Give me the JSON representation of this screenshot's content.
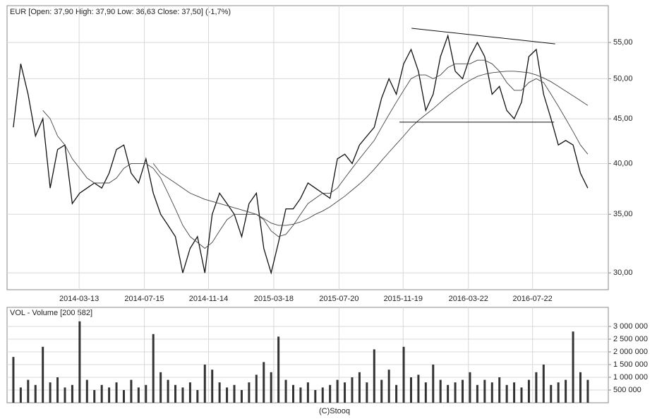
{
  "chart_data": [
    {
      "type": "line",
      "title": "EUR [Open: 37,90 High: 37,90 Low: 36,63 Close: 37,50] (-1,7%)",
      "x": [
        "2013-11-08",
        "2013-11-22",
        "2013-12-06",
        "2013-12-20",
        "2014-01-03",
        "2014-01-17",
        "2014-01-31",
        "2014-02-14",
        "2014-02-28",
        "2014-03-14",
        "2014-03-28",
        "2014-04-11",
        "2014-04-25",
        "2014-05-09",
        "2014-05-23",
        "2014-06-06",
        "2014-06-20",
        "2014-07-04",
        "2014-07-18",
        "2014-08-01",
        "2014-08-15",
        "2014-08-29",
        "2014-09-12",
        "2014-09-26",
        "2014-10-10",
        "2014-10-24",
        "2014-11-07",
        "2014-11-21",
        "2014-12-05",
        "2014-12-19",
        "2015-01-02",
        "2015-01-16",
        "2015-01-30",
        "2015-02-13",
        "2015-02-27",
        "2015-03-13",
        "2015-03-27",
        "2015-04-10",
        "2015-04-24",
        "2015-05-08",
        "2015-05-22",
        "2015-06-05",
        "2015-06-19",
        "2015-07-03",
        "2015-07-17",
        "2015-07-31",
        "2015-08-14",
        "2015-08-28",
        "2015-09-11",
        "2015-09-25",
        "2015-10-09",
        "2015-10-23",
        "2015-11-06",
        "2015-11-20",
        "2015-12-04",
        "2015-12-18",
        "2016-01-01",
        "2016-01-15",
        "2016-01-29",
        "2016-02-12",
        "2016-02-26",
        "2016-03-11",
        "2016-03-25",
        "2016-04-08",
        "2016-04-22",
        "2016-05-06",
        "2016-05-20",
        "2016-06-03",
        "2016-06-17",
        "2016-07-01",
        "2016-07-15",
        "2016-07-29",
        "2016-08-12",
        "2016-08-26",
        "2016-09-09",
        "2016-09-23",
        "2016-10-07",
        "2016-10-21",
        "2016-11-04"
      ],
      "series": [
        {
          "color": "#111111",
          "values": [
            44,
            52,
            48,
            43,
            45,
            37.5,
            41.5,
            42,
            36,
            37,
            37.5,
            38,
            37.5,
            39,
            41.5,
            42,
            39,
            38,
            40.5,
            37,
            35,
            34,
            33,
            30,
            32,
            33,
            30,
            35,
            37,
            36,
            35,
            33,
            36,
            37,
            32,
            30,
            32.5,
            35.5,
            35.5,
            36.5,
            38,
            37.5,
            37,
            36.5,
            40.5,
            41,
            40,
            42,
            43,
            44,
            47.5,
            50,
            48,
            52,
            54,
            51,
            46,
            48,
            53,
            56,
            51,
            50,
            53,
            55,
            53,
            48,
            49,
            46,
            45,
            47,
            53,
            54,
            48,
            45,
            42,
            42.5,
            42,
            39,
            37.5
          ]
        },
        {
          "color": "#444444",
          "values": [
            null,
            null,
            null,
            null,
            46,
            45,
            43,
            42,
            40.5,
            39.5,
            38.5,
            38,
            38,
            38,
            38.5,
            39.5,
            40,
            40,
            40,
            39.5,
            38.5,
            37,
            35.5,
            34,
            33,
            32.5,
            32,
            32.5,
            33.5,
            34.5,
            35,
            35,
            35,
            35,
            34.5,
            33.5,
            33,
            33.2,
            34,
            35,
            36,
            36.5,
            37,
            37,
            37.5,
            38.5,
            39.5,
            40.5,
            41.5,
            42.5,
            44,
            45.5,
            47,
            48.5,
            50,
            50.5,
            50.5,
            50,
            50.5,
            51.5,
            52,
            52,
            52,
            52.5,
            52.5,
            52,
            51,
            49.5,
            48.5,
            48.5,
            49.5,
            50,
            49.5,
            48,
            46.5,
            45,
            43.5,
            42,
            41
          ]
        },
        {
          "color": "#444444",
          "values": [
            null,
            null,
            null,
            null,
            null,
            null,
            null,
            null,
            null,
            null,
            null,
            null,
            null,
            null,
            null,
            null,
            null,
            null,
            null,
            40,
            39,
            38.5,
            38,
            37.5,
            37,
            36.7,
            36.4,
            36.2,
            36,
            35.8,
            35.6,
            35.4,
            35.2,
            35,
            34.6,
            34.2,
            34,
            34,
            34.1,
            34.3,
            34.6,
            35,
            35.3,
            35.7,
            36.2,
            36.7,
            37.3,
            37.9,
            38.6,
            39.4,
            40.3,
            41.2,
            42.1,
            43,
            44,
            44.8,
            45.5,
            46.2,
            47,
            47.8,
            48.5,
            49.2,
            49.8,
            50.3,
            50.6,
            50.8,
            50.9,
            51,
            51,
            50.9,
            50.8,
            50.5,
            50.1,
            49.6,
            49,
            48.4,
            47.8,
            47.2,
            46.6
          ]
        }
      ],
      "trendlines": [
        {
          "x": [
            "2015-12-05",
            "2016-09-03"
          ],
          "y": [
            57.1,
            54.8
          ]
        },
        {
          "x": [
            "2015-11-12",
            "2016-09-01"
          ],
          "y": [
            44.6,
            44.6
          ]
        }
      ],
      "xlim": [
        "2013-10-27",
        "2016-12-13"
      ],
      "xticks": [
        "2014-03-13",
        "2014-07-15",
        "2014-11-14",
        "2015-03-18",
        "2015-07-20",
        "2015-11-19",
        "2016-03-22",
        "2016-07-22"
      ],
      "ylim": [
        28.7,
        60.6
      ],
      "log_scale": true,
      "grid": true,
      "yticks": [
        {
          "value": 30,
          "label": "30,00"
        },
        {
          "value": 35,
          "label": "35,00"
        },
        {
          "value": 40,
          "label": "40,00"
        },
        {
          "value": 45,
          "label": "45,00"
        },
        {
          "value": 50,
          "label": "50,00"
        },
        {
          "value": 55,
          "label": "55,00"
        }
      ]
    },
    {
      "type": "bar",
      "title": "VOL - Volume [200 582]",
      "color": "#333333",
      "x": [
        "2013-11-08",
        "2013-11-22",
        "2013-12-06",
        "2013-12-20",
        "2014-01-03",
        "2014-01-17",
        "2014-01-31",
        "2014-02-14",
        "2014-02-28",
        "2014-03-14",
        "2014-03-28",
        "2014-04-11",
        "2014-04-25",
        "2014-05-09",
        "2014-05-23",
        "2014-06-06",
        "2014-06-20",
        "2014-07-04",
        "2014-07-18",
        "2014-08-01",
        "2014-08-15",
        "2014-08-29",
        "2014-09-12",
        "2014-09-26",
        "2014-10-10",
        "2014-10-24",
        "2014-11-07",
        "2014-11-21",
        "2014-12-05",
        "2014-12-19",
        "2015-01-02",
        "2015-01-16",
        "2015-01-30",
        "2015-02-13",
        "2015-02-27",
        "2015-03-13",
        "2015-03-27",
        "2015-04-10",
        "2015-04-24",
        "2015-05-08",
        "2015-05-22",
        "2015-06-05",
        "2015-06-19",
        "2015-07-03",
        "2015-07-17",
        "2015-07-31",
        "2015-08-14",
        "2015-08-28",
        "2015-09-11",
        "2015-09-25",
        "2015-10-09",
        "2015-10-23",
        "2015-11-06",
        "2015-11-20",
        "2015-12-04",
        "2015-12-18",
        "2016-01-01",
        "2016-01-15",
        "2016-01-29",
        "2016-02-12",
        "2016-02-26",
        "2016-03-11",
        "2016-03-25",
        "2016-04-08",
        "2016-04-22",
        "2016-05-06",
        "2016-05-20",
        "2016-06-03",
        "2016-06-17",
        "2016-07-01",
        "2016-07-15",
        "2016-07-29",
        "2016-08-12",
        "2016-08-26",
        "2016-09-09",
        "2016-09-23",
        "2016-10-07",
        "2016-10-21",
        "2016-11-04"
      ],
      "values": [
        1800000,
        600000,
        900000,
        700000,
        2200000,
        800000,
        1000000,
        600000,
        700000,
        3200000,
        900000,
        500000,
        700000,
        600000,
        800000,
        500000,
        900000,
        600000,
        700000,
        2700000,
        1200000,
        900000,
        700000,
        600000,
        800000,
        500000,
        1500000,
        1300000,
        800000,
        600000,
        700000,
        500000,
        800000,
        1100000,
        1600000,
        1200000,
        2600000,
        900000,
        700000,
        600000,
        800000,
        500000,
        600000,
        700000,
        900000,
        800000,
        1000000,
        1200000,
        800000,
        2100000,
        900000,
        1300000,
        700000,
        2200000,
        1000000,
        1100000,
        800000,
        1500000,
        900000,
        700000,
        800000,
        900000,
        1200000,
        700000,
        900000,
        800000,
        1000000,
        700000,
        800000,
        600000,
        900000,
        1200000,
        1500000,
        700000,
        800000,
        900000,
        2800000,
        1200000,
        900000
      ],
      "xlim": [
        "2013-10-27",
        "2016-12-13"
      ],
      "ylim": [
        0,
        3750000
      ],
      "grid": true,
      "yticks": [
        {
          "value": 500000,
          "label": "500 000"
        },
        {
          "value": 1000000,
          "label": "1 000 000"
        },
        {
          "value": 1500000,
          "label": "1 500 000"
        },
        {
          "value": 2000000,
          "label": "2 000 000"
        },
        {
          "value": 2500000,
          "label": "2 500 000"
        },
        {
          "value": 3000000,
          "label": "3 000 000"
        }
      ]
    }
  ],
  "footer": "(C)Stooq"
}
